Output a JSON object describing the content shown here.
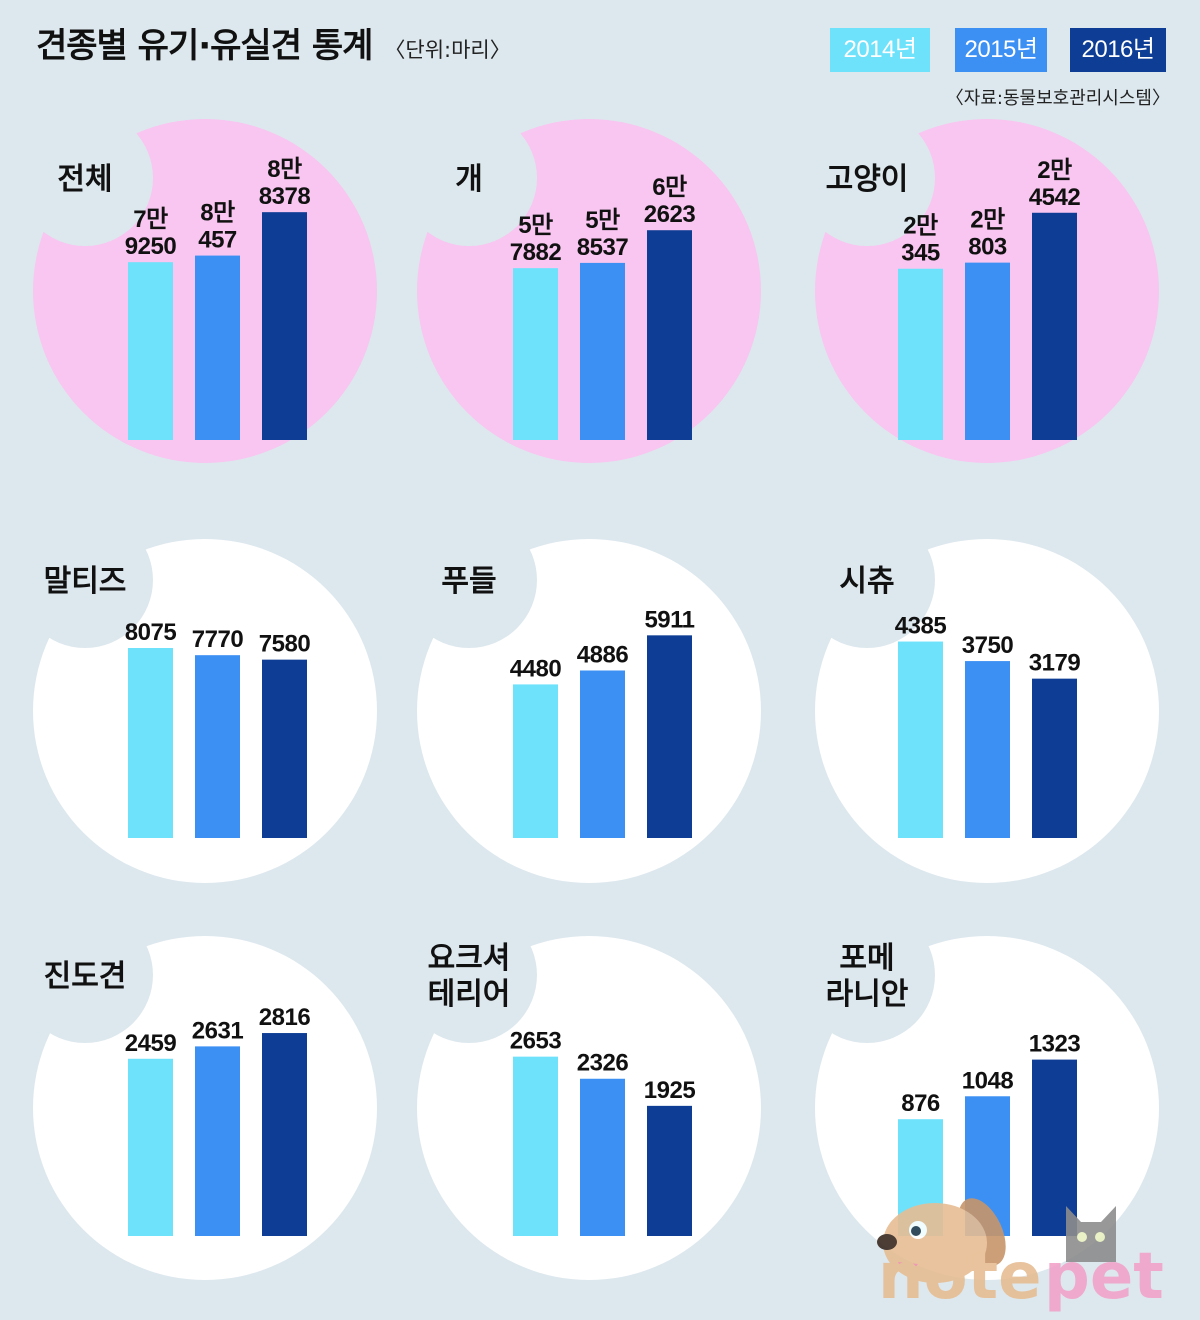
{
  "colors": {
    "background": "#dde8ee"
  },
  "chart_data": {
    "type": "bar",
    "title": "견종별 유기·유실견 통계",
    "unit": "〈단위:마리〉",
    "source": "〈자료:동물보호관리시스템〉",
    "legend": "top-right",
    "grid": false,
    "categories": [
      "2014년",
      "2015년",
      "2016년"
    ],
    "colors": [
      "#6fe2fb",
      "#3c90f4",
      "#0d3d94"
    ],
    "panels": [
      {
        "title_lines": [
          "전체"
        ],
        "values": [
          79250,
          80457,
          88378
        ],
        "value_labels": [
          [
            "7만",
            "9250"
          ],
          [
            "8만",
            "457"
          ],
          [
            "8만",
            "8378"
          ]
        ],
        "ylim": [
          46800,
          90600
        ],
        "circle_color": "#f8c6f0"
      },
      {
        "title_lines": [
          "개"
        ],
        "values": [
          57882,
          58537,
          62623
        ],
        "value_labels": [
          [
            "5만",
            "7882"
          ],
          [
            "5만",
            "8537"
          ],
          [
            "6만",
            "2623"
          ]
        ],
        "ylim": [
          36400,
          66400
        ],
        "circle_color": "#f8c6f0"
      },
      {
        "title_lines": [
          "고양이"
        ],
        "values": [
          20345,
          20803,
          24542
        ],
        "value_labels": [
          [
            "2만",
            "345"
          ],
          [
            "2만",
            "803"
          ],
          [
            "2만",
            "4542"
          ]
        ],
        "ylim": [
          7500,
          25500
        ],
        "circle_color": "#f8c6f0"
      },
      {
        "title_lines": [
          "말티즈"
        ],
        "values": [
          8075,
          7770,
          7580
        ],
        "value_labels": [
          [
            "8075"
          ],
          [
            "7770"
          ],
          [
            "7580"
          ]
        ],
        "ylim": [
          0,
          10200
        ],
        "circle_color": "#ffffff"
      },
      {
        "title_lines": [
          "푸들"
        ],
        "values": [
          4480,
          4886,
          5911
        ],
        "value_labels": [
          [
            "4480"
          ],
          [
            "4886"
          ],
          [
            "5911"
          ]
        ],
        "ylim": [
          0,
          7000
        ],
        "circle_color": "#ffffff"
      },
      {
        "title_lines": [
          "시츄"
        ],
        "values": [
          4385,
          3750,
          3179
        ],
        "value_labels": [
          [
            "4385"
          ],
          [
            "3750"
          ],
          [
            "3179"
          ]
        ],
        "ylim": [
          -2000,
          5800
        ],
        "circle_color": "#ffffff"
      },
      {
        "title_lines": [
          "진도견"
        ],
        "values": [
          2459,
          2631,
          2816
        ],
        "value_labels": [
          [
            "2459"
          ],
          [
            "2631"
          ],
          [
            "2816"
          ]
        ],
        "ylim": [
          0,
          3330
        ],
        "circle_color": "#ffffff"
      },
      {
        "title_lines": [
          "요크셔",
          "테리어"
        ],
        "values": [
          2653,
          2326,
          1925
        ],
        "value_labels": [
          [
            "2653"
          ],
          [
            "2326"
          ],
          [
            "1925"
          ]
        ],
        "ylim": [
          0,
          3550
        ],
        "circle_color": "#ffffff"
      },
      {
        "title_lines": [
          "포메",
          "라니안"
        ],
        "values": [
          876,
          1048,
          1323
        ],
        "value_labels": [
          [
            "876"
          ],
          [
            "1048"
          ],
          [
            "1323"
          ]
        ],
        "ylim": [
          0,
          1800
        ],
        "circle_color": "#ffffff"
      }
    ]
  },
  "logo": {
    "left": "note",
    "right": "pet"
  }
}
